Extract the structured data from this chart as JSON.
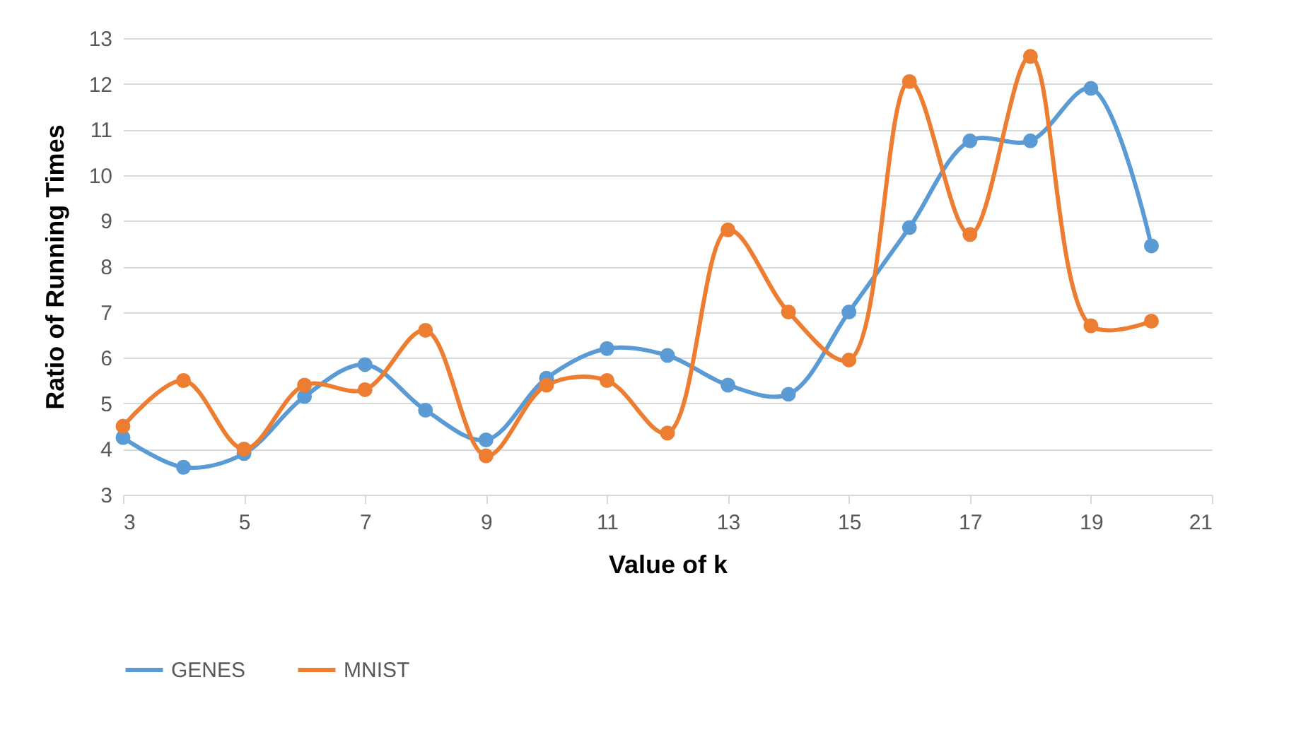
{
  "chart_data": {
    "type": "line",
    "xlabel": "Value of k",
    "ylabel": "Ratio of Running Times",
    "x": [
      3,
      4,
      5,
      6,
      7,
      8,
      9,
      10,
      11,
      12,
      13,
      14,
      15,
      16,
      17,
      18,
      19,
      20
    ],
    "series": [
      {
        "name": "GENES",
        "color": "#5b9bd5",
        "values": [
          4.25,
          3.6,
          3.9,
          5.15,
          5.85,
          4.85,
          4.2,
          5.55,
          6.2,
          6.05,
          5.4,
          5.2,
          7.0,
          8.85,
          10.75,
          10.75,
          11.9,
          8.45
        ]
      },
      {
        "name": "MNIST",
        "color": "#ed7d31",
        "values": [
          4.5,
          5.5,
          4.0,
          5.4,
          5.3,
          6.6,
          3.85,
          5.4,
          5.5,
          4.35,
          8.8,
          7.0,
          5.95,
          12.05,
          8.7,
          12.6,
          6.7,
          6.8
        ]
      }
    ],
    "xlim": [
      3,
      21
    ],
    "xticks": [
      3,
      5,
      7,
      9,
      11,
      13,
      15,
      17,
      19,
      21
    ],
    "ylim": [
      3,
      13
    ],
    "yticks": [
      3,
      4,
      5,
      6,
      7,
      8,
      9,
      10,
      11,
      12,
      13
    ],
    "grid": "y",
    "legend": "bottom",
    "marker": "circle",
    "line_style": "solid"
  }
}
